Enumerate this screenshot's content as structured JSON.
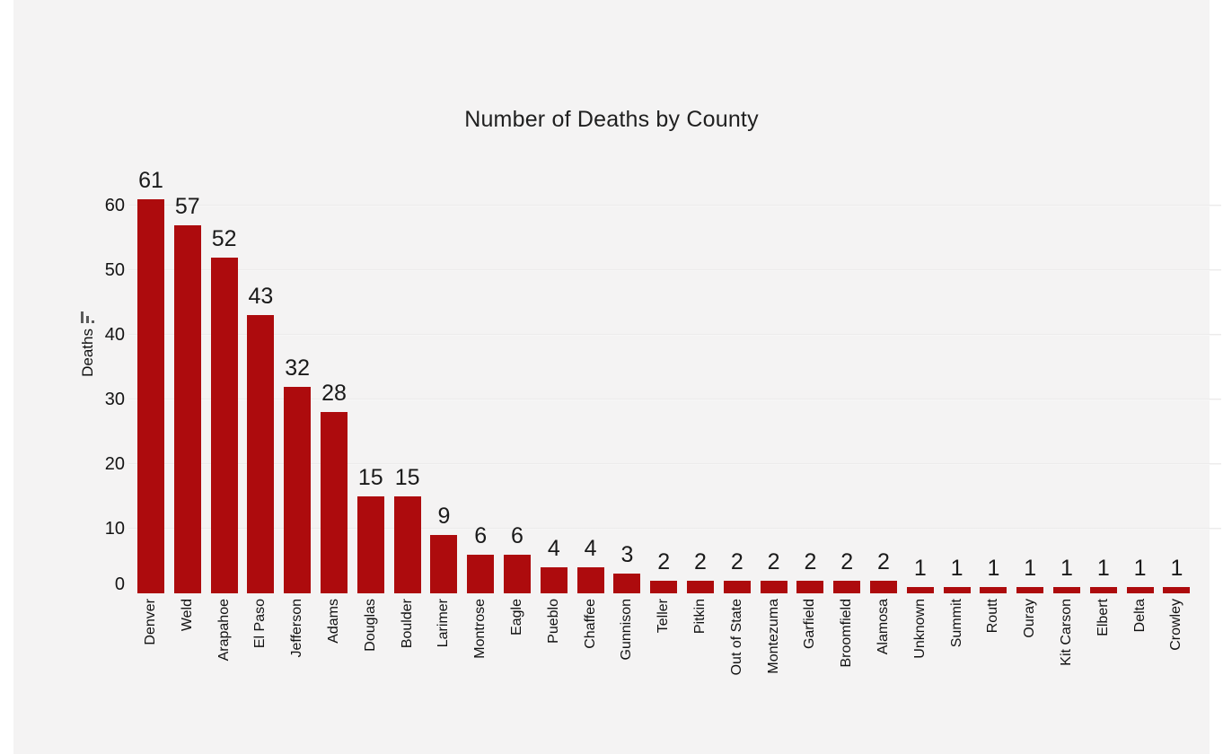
{
  "page": {
    "background_color": "#ffffff",
    "panel_background_color": "#f4f3f3"
  },
  "icons": {
    "y_axis_icon": "mini-bar-chart-icon"
  },
  "chart_data": {
    "type": "bar",
    "title": "Number of Deaths by County",
    "xlabel": "",
    "ylabel": "Deaths",
    "categories": [
      "Denver",
      "Weld",
      "Arapahoe",
      "El Paso",
      "Jefferson",
      "Adams",
      "Douglas",
      "Boulder",
      "Larimer",
      "Montrose",
      "Eagle",
      "Pueblo",
      "Chaffee",
      "Gunnison",
      "Teller",
      "Pitkin",
      "Out of State",
      "Montezuma",
      "Garfield",
      "Broomfield",
      "Alamosa",
      "Unknown",
      "Summit",
      "Routt",
      "Ouray",
      "Kit Carson",
      "Elbert",
      "Delta",
      "Crowley"
    ],
    "values": [
      61,
      57,
      52,
      43,
      32,
      28,
      15,
      15,
      9,
      6,
      6,
      4,
      4,
      3,
      2,
      2,
      2,
      2,
      2,
      2,
      2,
      1,
      1,
      1,
      1,
      1,
      1,
      1,
      1
    ],
    "yticks": [
      0,
      10,
      20,
      30,
      40,
      50,
      60
    ],
    "ylim": [
      0,
      65
    ],
    "grid": true,
    "legend": false,
    "value_labels": true,
    "x_tick_rotation": -90,
    "bar_color": "#ad0b0d",
    "gridline_color": "#e7e6e6",
    "text_color": "#1a1a1a"
  }
}
